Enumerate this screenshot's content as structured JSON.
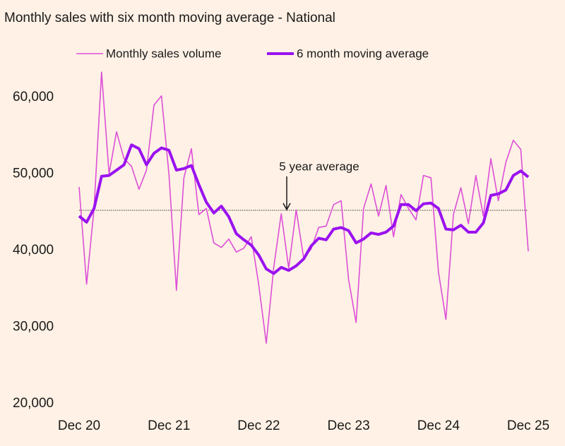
{
  "chart_data": {
    "type": "line",
    "title": "Monthly sales with six month moving average - National",
    "categories": [
      "Dec 20",
      null,
      null,
      null,
      null,
      null,
      null,
      null,
      null,
      null,
      null,
      null,
      "Dec 21",
      null,
      null,
      null,
      null,
      null,
      null,
      null,
      null,
      null,
      null,
      null,
      "Dec 22",
      null,
      null,
      null,
      null,
      null,
      null,
      null,
      null,
      null,
      null,
      null,
      "Dec 23",
      null,
      null,
      null,
      null,
      null,
      null,
      null,
      null,
      null,
      null,
      null,
      "Dec 24",
      null,
      null,
      null,
      null,
      null,
      null,
      null,
      null,
      null,
      null,
      null,
      "Dec 25"
    ],
    "series": [
      {
        "name": "Monthly sales volume",
        "color": "#dc4fd8",
        "width": 1.6,
        "values": [
          48300,
          35600,
          45500,
          63300,
          50000,
          55500,
          52000,
          51000,
          48000,
          50500,
          59000,
          60200,
          50000,
          34800,
          49500,
          53300,
          44700,
          45500,
          41000,
          40400,
          41500,
          39800,
          40300,
          41800,
          35500,
          27900,
          37800,
          44800,
          37700,
          45300,
          39000,
          40200,
          43000,
          43200,
          46000,
          46500,
          36200,
          30600,
          45500,
          48700,
          44500,
          48500,
          41800,
          47300,
          45500,
          44000,
          49800,
          49500,
          37200,
          31000,
          44700,
          48200,
          43500,
          49800,
          44500,
          52000,
          46500,
          51500,
          54400,
          53200,
          39900
        ]
      },
      {
        "name": "6 month moving average",
        "color": "#9a12f0",
        "width": 4,
        "values": [
          44500,
          43700,
          45500,
          49700,
          49800,
          50500,
          51200,
          53800,
          53300,
          51200,
          52700,
          53400,
          53100,
          50500,
          50700,
          51100,
          48600,
          46300,
          44900,
          45800,
          44400,
          42200,
          41400,
          40700,
          39400,
          37600,
          37000,
          37800,
          37400,
          38000,
          38900,
          40600,
          41600,
          41400,
          42800,
          43000,
          42600,
          41000,
          41500,
          42300,
          42100,
          42400,
          43200,
          46000,
          46000,
          45200,
          46100,
          46200,
          45500,
          42800,
          42700,
          43300,
          42400,
          42400,
          43600,
          47200,
          47400,
          47900,
          49800,
          50400,
          49600
        ]
      }
    ],
    "reference_line": {
      "value": 45250,
      "label": "5 year average"
    },
    "ylim": [
      20000,
      65000
    ],
    "yticks": [
      {
        "value": 20000,
        "label": "20,000"
      },
      {
        "value": 30000,
        "label": "30,000"
      },
      {
        "value": 40000,
        "label": "40,000"
      },
      {
        "value": 50000,
        "label": "50,000"
      },
      {
        "value": 60000,
        "label": "60,000"
      }
    ],
    "grid": false
  }
}
